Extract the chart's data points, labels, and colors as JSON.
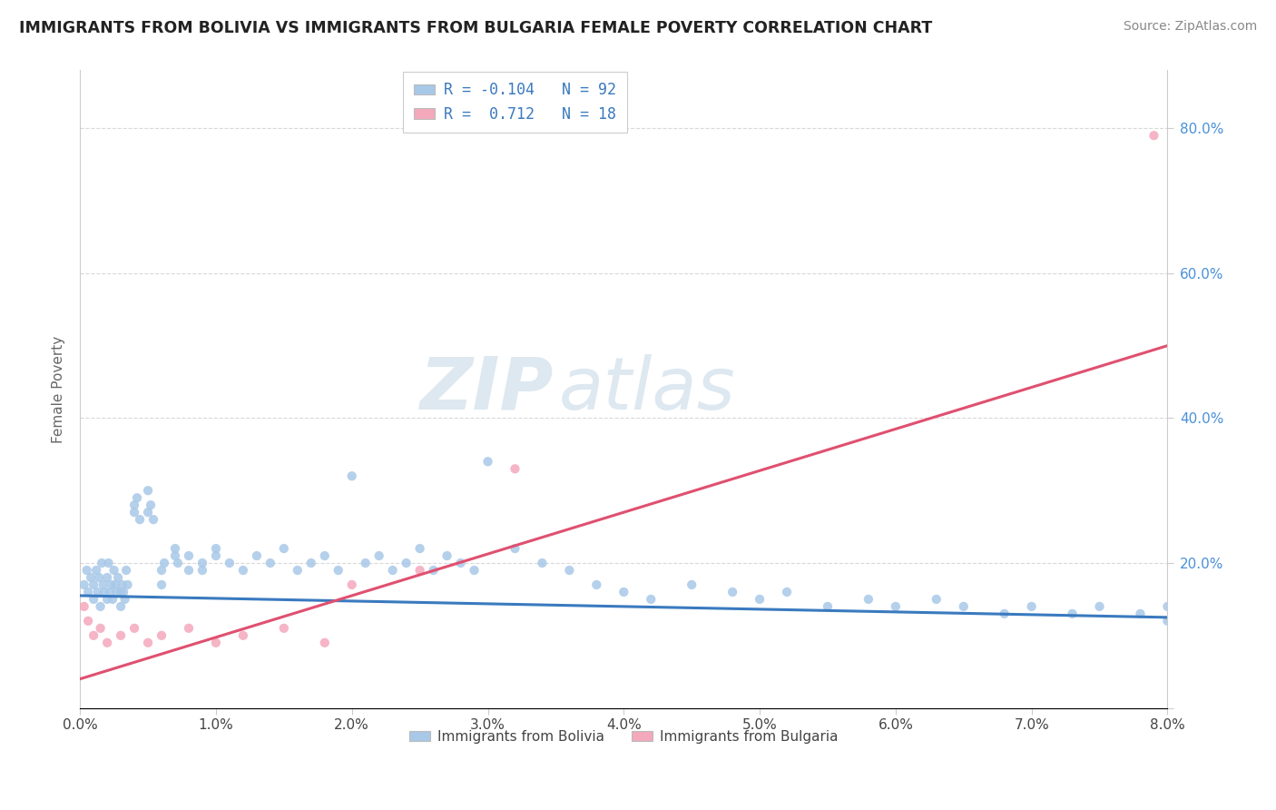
{
  "title": "IMMIGRANTS FROM BOLIVIA VS IMMIGRANTS FROM BULGARIA FEMALE POVERTY CORRELATION CHART",
  "source": "Source: ZipAtlas.com",
  "ylabel": "Female Poverty",
  "xlim": [
    0.0,
    0.08
  ],
  "ylim": [
    0.0,
    0.88
  ],
  "bolivia_color": "#a8c8e8",
  "bulgaria_color": "#f4a8bc",
  "bolivia_line_color": "#3a7abf",
  "bulgaria_line_color": "#e05070",
  "bolivia_R": -0.104,
  "bolivia_N": 92,
  "bulgaria_R": 0.712,
  "bulgaria_N": 18,
  "watermark_zip": "ZIP",
  "watermark_atlas": "atlas",
  "xtick_vals": [
    0.0,
    0.01,
    0.02,
    0.03,
    0.04,
    0.05,
    0.06,
    0.07,
    0.08
  ],
  "xtick_labels": [
    "0.0%",
    "1.0%",
    "2.0%",
    "3.0%",
    "4.0%",
    "5.0%",
    "6.0%",
    "7.0%",
    "8.0%"
  ],
  "ytick_vals": [
    0.0,
    0.2,
    0.4,
    0.6,
    0.8
  ],
  "ytick_labels": [
    "",
    "20.0%",
    "40.0%",
    "60.0%",
    "80.0%"
  ],
  "bolivia_x": [
    0.0003,
    0.0005,
    0.0006,
    0.0008,
    0.001,
    0.001,
    0.0012,
    0.0013,
    0.0014,
    0.0015,
    0.0016,
    0.0017,
    0.0018,
    0.002,
    0.002,
    0.0021,
    0.0022,
    0.0023,
    0.0024,
    0.0025,
    0.0026,
    0.0027,
    0.0028,
    0.003,
    0.003,
    0.0031,
    0.0032,
    0.0033,
    0.0034,
    0.0035,
    0.004,
    0.004,
    0.0042,
    0.0044,
    0.005,
    0.005,
    0.0052,
    0.0054,
    0.006,
    0.006,
    0.0062,
    0.007,
    0.007,
    0.0072,
    0.008,
    0.008,
    0.009,
    0.009,
    0.01,
    0.01,
    0.011,
    0.012,
    0.013,
    0.014,
    0.015,
    0.016,
    0.017,
    0.018,
    0.019,
    0.02,
    0.021,
    0.022,
    0.023,
    0.024,
    0.025,
    0.026,
    0.027,
    0.028,
    0.029,
    0.03,
    0.032,
    0.034,
    0.036,
    0.038,
    0.04,
    0.042,
    0.045,
    0.048,
    0.05,
    0.052,
    0.055,
    0.058,
    0.06,
    0.063,
    0.065,
    0.068,
    0.07,
    0.073,
    0.075,
    0.078,
    0.08,
    0.08
  ],
  "bolivia_y": [
    0.17,
    0.19,
    0.16,
    0.18,
    0.17,
    0.15,
    0.19,
    0.16,
    0.18,
    0.14,
    0.2,
    0.17,
    0.16,
    0.18,
    0.15,
    0.2,
    0.16,
    0.17,
    0.15,
    0.19,
    0.17,
    0.16,
    0.18,
    0.16,
    0.14,
    0.17,
    0.16,
    0.15,
    0.19,
    0.17,
    0.28,
    0.27,
    0.29,
    0.26,
    0.3,
    0.27,
    0.28,
    0.26,
    0.17,
    0.19,
    0.2,
    0.21,
    0.22,
    0.2,
    0.19,
    0.21,
    0.2,
    0.19,
    0.21,
    0.22,
    0.2,
    0.19,
    0.21,
    0.2,
    0.22,
    0.19,
    0.2,
    0.21,
    0.19,
    0.32,
    0.2,
    0.21,
    0.19,
    0.2,
    0.22,
    0.19,
    0.21,
    0.2,
    0.19,
    0.34,
    0.22,
    0.2,
    0.19,
    0.17,
    0.16,
    0.15,
    0.17,
    0.16,
    0.15,
    0.16,
    0.14,
    0.15,
    0.14,
    0.15,
    0.14,
    0.13,
    0.14,
    0.13,
    0.14,
    0.13,
    0.14,
    0.12
  ],
  "bulgaria_x": [
    0.0003,
    0.0006,
    0.001,
    0.0015,
    0.002,
    0.003,
    0.004,
    0.005,
    0.006,
    0.008,
    0.01,
    0.012,
    0.015,
    0.018,
    0.02,
    0.025,
    0.032,
    0.079
  ],
  "bulgaria_y": [
    0.14,
    0.12,
    0.1,
    0.11,
    0.09,
    0.1,
    0.11,
    0.09,
    0.1,
    0.11,
    0.09,
    0.1,
    0.11,
    0.09,
    0.17,
    0.19,
    0.33,
    0.79
  ]
}
